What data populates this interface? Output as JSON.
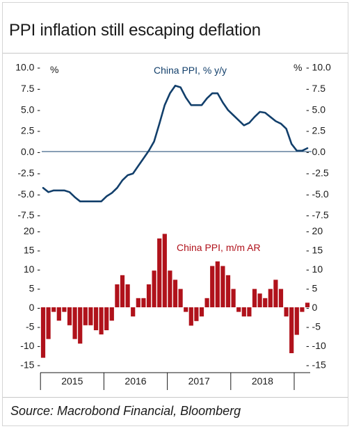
{
  "title": "PPI inflation still escaping deflation",
  "source": "Source: Macrobond Financial, Bloomberg",
  "colors": {
    "line": "#123f6b",
    "bars": "#b0121b"
  },
  "chart_data": [
    {
      "type": "line",
      "label": "China PPI, % y/y",
      "unit_left": "%",
      "unit_right": "%",
      "ylim": [
        -7.5,
        10.0
      ],
      "yticks": [
        "10.0",
        "7.5",
        "5.0",
        "2.5",
        "0.0",
        "-2.5",
        "-5.0",
        "-7.5"
      ],
      "x": [
        "2015-01",
        "2015-02",
        "2015-03",
        "2015-04",
        "2015-05",
        "2015-06",
        "2015-07",
        "2015-08",
        "2015-09",
        "2015-10",
        "2015-11",
        "2015-12",
        "2016-01",
        "2016-02",
        "2016-03",
        "2016-04",
        "2016-05",
        "2016-06",
        "2016-07",
        "2016-08",
        "2016-09",
        "2016-10",
        "2016-11",
        "2016-12",
        "2017-01",
        "2017-02",
        "2017-03",
        "2017-04",
        "2017-05",
        "2017-06",
        "2017-07",
        "2017-08",
        "2017-09",
        "2017-10",
        "2017-11",
        "2017-12",
        "2018-01",
        "2018-02",
        "2018-03",
        "2018-04",
        "2018-05",
        "2018-06",
        "2018-07",
        "2018-08",
        "2018-09",
        "2018-10",
        "2018-11",
        "2018-12",
        "2019-01",
        "2019-02",
        "2019-03"
      ],
      "values": [
        -4.3,
        -4.8,
        -4.6,
        -4.6,
        -4.6,
        -4.8,
        -5.4,
        -5.9,
        -5.9,
        -5.9,
        -5.9,
        -5.9,
        -5.3,
        -4.9,
        -4.3,
        -3.4,
        -2.8,
        -2.6,
        -1.7,
        -0.8,
        0.1,
        1.2,
        3.3,
        5.5,
        6.9,
        7.8,
        7.6,
        6.4,
        5.5,
        5.5,
        5.5,
        6.3,
        6.9,
        6.9,
        5.8,
        4.9,
        4.3,
        3.7,
        3.1,
        3.4,
        4.1,
        4.7,
        4.6,
        4.1,
        3.6,
        3.3,
        2.7,
        0.9,
        0.1,
        0.1,
        0.4
      ]
    },
    {
      "type": "bar",
      "label": "China PPI, m/m AR",
      "ylim": [
        -15,
        20
      ],
      "yticks": [
        "20",
        "15",
        "10",
        "5",
        "0",
        "-5",
        "-10",
        "-15"
      ],
      "x": [
        "2015-01",
        "2015-02",
        "2015-03",
        "2015-04",
        "2015-05",
        "2015-06",
        "2015-07",
        "2015-08",
        "2015-09",
        "2015-10",
        "2015-11",
        "2015-12",
        "2016-01",
        "2016-02",
        "2016-03",
        "2016-04",
        "2016-05",
        "2016-06",
        "2016-07",
        "2016-08",
        "2016-09",
        "2016-10",
        "2016-11",
        "2016-12",
        "2017-01",
        "2017-02",
        "2017-03",
        "2017-04",
        "2017-05",
        "2017-06",
        "2017-07",
        "2017-08",
        "2017-09",
        "2017-10",
        "2017-11",
        "2017-12",
        "2018-01",
        "2018-02",
        "2018-03",
        "2018-04",
        "2018-05",
        "2018-06",
        "2018-07",
        "2018-08",
        "2018-09",
        "2018-10",
        "2018-11",
        "2018-12",
        "2019-01",
        "2019-02",
        "2019-03"
      ],
      "values": [
        -13.2,
        -8.3,
        -1.2,
        -3.5,
        -1.2,
        -4.7,
        -8.3,
        -9.5,
        -4.7,
        -4.7,
        -6.0,
        -7.1,
        -6.0,
        -3.5,
        6.0,
        8.4,
        6.0,
        -2.4,
        2.4,
        2.4,
        6.0,
        9.6,
        18.0,
        19.2,
        9.6,
        7.2,
        4.8,
        -1.2,
        -4.8,
        -3.6,
        -2.4,
        2.4,
        10.8,
        12.0,
        10.8,
        8.4,
        4.8,
        -1.2,
        -2.4,
        -2.4,
        4.8,
        3.6,
        2.4,
        4.8,
        7.2,
        4.8,
        -2.4,
        -12.0,
        -7.2,
        -1.2,
        1.2
      ]
    }
  ],
  "x_axis": {
    "years": [
      "2015",
      "2016",
      "2017",
      "2018"
    ]
  }
}
